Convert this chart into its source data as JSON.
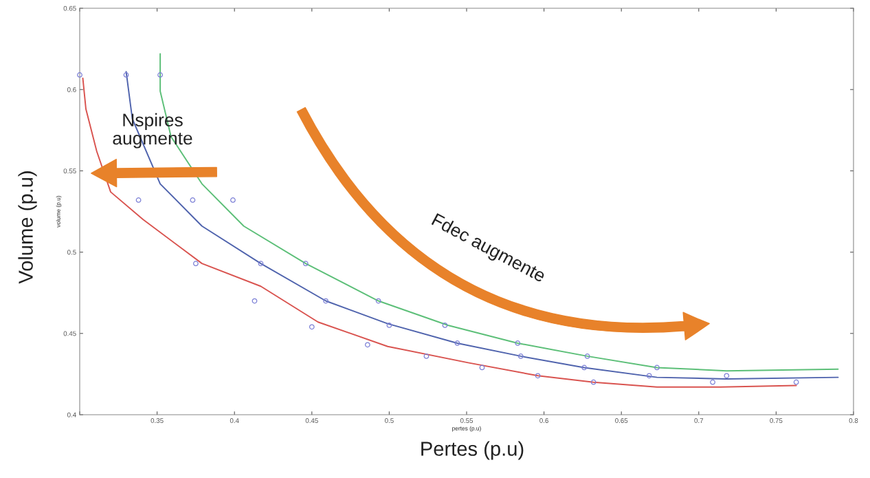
{
  "chart_data": {
    "type": "scatter",
    "xlabel": "pertes (p.u)",
    "ylabel": "volume (p.u)",
    "xlim": [
      0.3,
      0.8
    ],
    "xticks": [
      {
        "value": 0.3,
        "label": null
      },
      0.35,
      0.4,
      0.45,
      0.5,
      0.55,
      0.6,
      0.65,
      0.7,
      0.75,
      0.8
    ],
    "ylim": [
      0.4,
      0.65
    ],
    "yticks": [
      0.4,
      0.45,
      0.5,
      0.55,
      0.6,
      0.65
    ],
    "grid": false,
    "legend": false,
    "annotations": [
      "Nspires\naugmente",
      "Fdec augmente",
      "Pertes (p.u)",
      "Volume (p.u)"
    ],
    "series": [
      {
        "marker": "circle",
        "color": "#7b7fd6",
        "x": [
          0.3,
          0.33,
          0.352,
          0.338,
          0.373,
          0.399,
          0.375,
          0.417,
          0.446,
          0.413,
          0.459,
          0.493,
          0.45,
          0.5,
          0.536,
          0.486,
          0.544,
          0.583,
          0.524,
          0.585,
          0.628,
          0.56,
          0.596,
          0.626,
          0.673,
          0.632,
          0.668,
          0.718,
          0.709,
          0.763
        ],
        "values": [
          0.609,
          0.609,
          0.609,
          0.532,
          0.532,
          0.532,
          0.493,
          0.493,
          0.493,
          0.47,
          0.47,
          0.47,
          0.454,
          0.455,
          0.455,
          0.443,
          0.444,
          0.444,
          0.436,
          0.436,
          0.436,
          0.429,
          0.424,
          0.429,
          0.429,
          0.42,
          0.424,
          0.424,
          0.42,
          0.42
        ]
      },
      {
        "type": "line",
        "marker": "none",
        "line_style": "solid",
        "color": "#d9534f",
        "x": [
          0.302,
          0.304,
          0.311,
          0.32,
          0.341,
          0.379,
          0.417,
          0.454,
          0.499,
          0.551,
          0.596,
          0.632,
          0.673,
          0.714,
          0.763
        ],
        "values": [
          0.607,
          0.588,
          0.562,
          0.537,
          0.52,
          0.493,
          0.479,
          0.457,
          0.442,
          0.432,
          0.424,
          0.42,
          0.417,
          0.417,
          0.418
        ]
      },
      {
        "type": "line",
        "marker": "none",
        "line_style": "solid",
        "color": "#4f63ad",
        "x": [
          0.33,
          0.334,
          0.352,
          0.379,
          0.417,
          0.459,
          0.499,
          0.544,
          0.585,
          0.626,
          0.673,
          0.718,
          0.79
        ],
        "values": [
          0.611,
          0.582,
          0.542,
          0.516,
          0.493,
          0.47,
          0.456,
          0.444,
          0.436,
          0.429,
          0.423,
          0.422,
          0.423
        ]
      },
      {
        "type": "line",
        "marker": "none",
        "line_style": "solid",
        "color": "#5cbf78",
        "x": [
          0.352,
          0.352,
          0.359,
          0.379,
          0.406,
          0.446,
          0.493,
          0.538,
          0.583,
          0.628,
          0.673,
          0.718,
          0.79
        ],
        "values": [
          0.622,
          0.599,
          0.571,
          0.542,
          0.516,
          0.493,
          0.47,
          0.455,
          0.444,
          0.436,
          0.429,
          0.427,
          0.428
        ]
      }
    ]
  }
}
